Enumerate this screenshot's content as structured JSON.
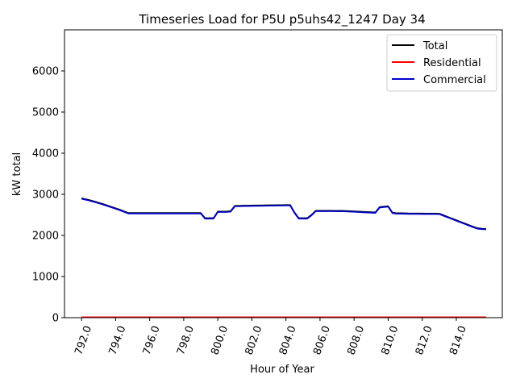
{
  "chart_data": {
    "type": "line",
    "title": "Timeseries Load for P5U p5uhs42_1247  Day 34",
    "xlabel": "Hour of Year",
    "ylabel": "kW total",
    "xlim": [
      791.0,
      816.7
    ],
    "ylim": [
      0,
      7000
    ],
    "xticks": [
      792,
      794,
      796,
      798,
      800,
      802,
      804,
      806,
      808,
      810,
      812,
      814
    ],
    "xtick_labels": [
      "792.0",
      "794.0",
      "796.0",
      "798.0",
      "800.0",
      "802.0",
      "804.0",
      "806.0",
      "808.0",
      "810.0",
      "812.0",
      "814.0"
    ],
    "yticks": [
      0,
      1000,
      2000,
      3000,
      4000,
      5000,
      6000
    ],
    "ytick_labels": [
      "0",
      "1000",
      "2000",
      "3000",
      "4000",
      "5000",
      "6000"
    ],
    "legend_position": "top-right",
    "x": [
      792.0,
      792.25,
      792.5,
      792.75,
      793.0,
      793.25,
      793.5,
      793.75,
      794.0,
      794.25,
      794.5,
      794.75,
      795.0,
      795.25,
      795.5,
      795.75,
      796.0,
      796.25,
      796.5,
      796.75,
      797.0,
      797.25,
      797.5,
      797.75,
      798.0,
      798.25,
      798.5,
      798.75,
      799.0,
      799.25,
      799.5,
      799.75,
      800.0,
      800.25,
      800.5,
      800.75,
      801.0,
      801.25,
      801.5,
      801.75,
      802.0,
      802.25,
      802.5,
      802.75,
      803.0,
      803.25,
      803.5,
      803.75,
      804.0,
      804.25,
      804.5,
      804.75,
      805.0,
      805.25,
      805.5,
      805.75,
      806.0,
      806.25,
      806.5,
      806.75,
      807.0,
      807.25,
      807.5,
      807.75,
      808.0,
      808.25,
      808.5,
      808.75,
      809.0,
      809.25,
      809.5,
      809.75,
      810.0,
      810.25,
      810.5,
      810.75,
      811.0,
      811.25,
      811.5,
      811.75,
      812.0,
      812.25,
      812.5,
      812.75,
      813.0,
      813.25,
      813.5,
      813.75,
      814.0,
      814.25,
      814.5,
      814.75,
      815.0,
      815.25,
      815.5,
      815.75
    ],
    "series": [
      {
        "name": "Total",
        "color": "#000000",
        "values": [
          2905,
          2880,
          2855,
          2825,
          2795,
          2765,
          2730,
          2695,
          2660,
          2625,
          2585,
          2545,
          2545,
          2545,
          2545,
          2545,
          2545,
          2545,
          2545,
          2545,
          2545,
          2545,
          2545,
          2545,
          2545,
          2545,
          2545,
          2545,
          2545,
          2420,
          2420,
          2420,
          2580,
          2580,
          2580,
          2590,
          2720,
          2720,
          2725,
          2725,
          2728,
          2730,
          2730,
          2732,
          2735,
          2735,
          2737,
          2738,
          2740,
          2740,
          2560,
          2420,
          2420,
          2420,
          2500,
          2600,
          2600,
          2600,
          2600,
          2600,
          2598,
          2600,
          2595,
          2590,
          2585,
          2580,
          2575,
          2570,
          2565,
          2560,
          2690,
          2700,
          2710,
          2555,
          2540,
          2540,
          2538,
          2535,
          2535,
          2535,
          2533,
          2532,
          2532,
          2532,
          2530,
          2490,
          2450,
          2410,
          2370,
          2330,
          2290,
          2250,
          2210,
          2175,
          2165,
          2160
        ]
      },
      {
        "name": "Residential",
        "color": "#ff0000",
        "values": [
          12,
          12,
          12,
          12,
          12,
          12,
          12,
          12,
          12,
          12,
          12,
          12,
          12,
          12,
          12,
          12,
          12,
          12,
          12,
          12,
          12,
          12,
          12,
          12,
          12,
          12,
          12,
          12,
          12,
          12,
          12,
          12,
          12,
          12,
          12,
          12,
          12,
          12,
          12,
          12,
          12,
          12,
          12,
          12,
          12,
          12,
          12,
          12,
          12,
          12,
          12,
          12,
          12,
          12,
          12,
          12,
          12,
          12,
          12,
          12,
          12,
          12,
          12,
          12,
          12,
          12,
          12,
          12,
          12,
          12,
          12,
          12,
          12,
          12,
          12,
          12,
          12,
          12,
          12,
          12,
          12,
          12,
          12,
          12,
          12,
          12,
          12,
          12,
          12,
          12,
          12,
          12,
          12,
          12,
          12,
          12
        ]
      },
      {
        "name": "Commercial",
        "color": "#0000cc",
        "values": [
          2893,
          2868,
          2843,
          2813,
          2783,
          2753,
          2718,
          2683,
          2648,
          2613,
          2573,
          2533,
          2533,
          2533,
          2533,
          2533,
          2533,
          2533,
          2533,
          2533,
          2533,
          2533,
          2533,
          2533,
          2533,
          2533,
          2533,
          2533,
          2533,
          2408,
          2408,
          2408,
          2568,
          2568,
          2568,
          2578,
          2708,
          2708,
          2713,
          2713,
          2716,
          2718,
          2718,
          2720,
          2723,
          2723,
          2725,
          2726,
          2728,
          2728,
          2548,
          2408,
          2408,
          2408,
          2488,
          2588,
          2588,
          2588,
          2588,
          2588,
          2586,
          2588,
          2583,
          2578,
          2573,
          2568,
          2563,
          2558,
          2553,
          2548,
          2678,
          2688,
          2698,
          2543,
          2528,
          2528,
          2526,
          2523,
          2523,
          2523,
          2521,
          2520,
          2520,
          2520,
          2518,
          2478,
          2438,
          2398,
          2358,
          2318,
          2278,
          2238,
          2198,
          2163,
          2153,
          2148
        ]
      }
    ]
  }
}
